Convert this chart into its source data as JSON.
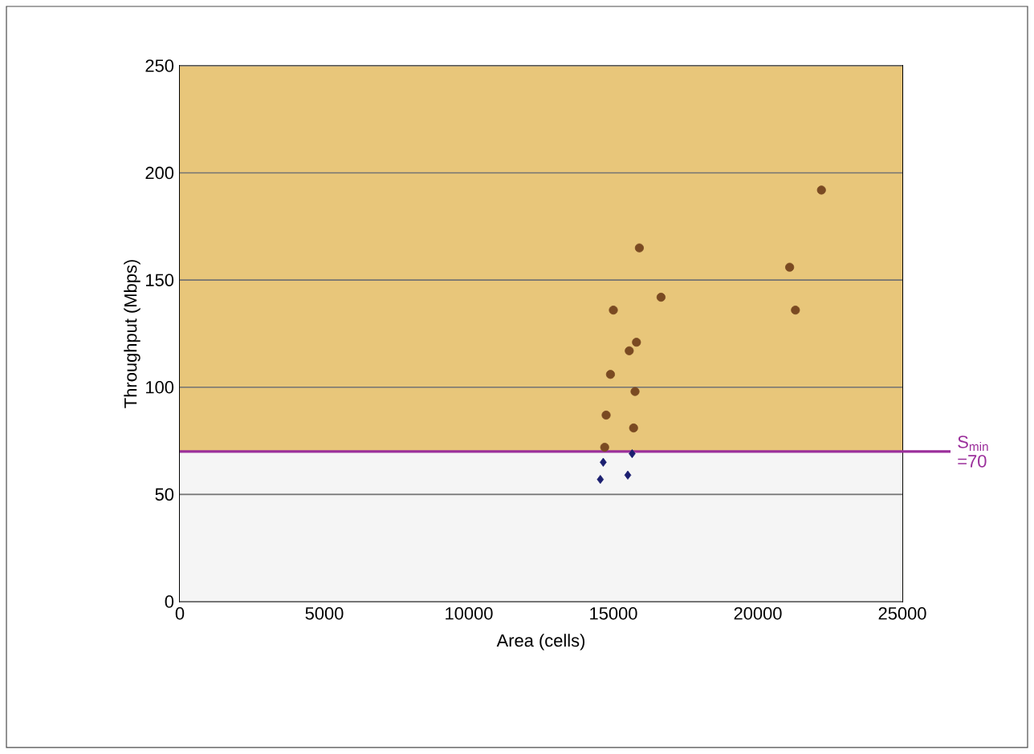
{
  "chart_data": {
    "type": "scatter",
    "xlabel": "Area (cells)",
    "ylabel": "Throughput (Mbps)",
    "xlim": [
      0,
      25000
    ],
    "ylim": [
      0,
      250
    ],
    "xticks": [
      0,
      5000,
      10000,
      15000,
      20000,
      25000
    ],
    "yticks": [
      0,
      50,
      100,
      150,
      200,
      250
    ],
    "grid": "y",
    "series": [
      {
        "color": "#7a4a22",
        "marker": "circle",
        "x": [
          15000,
          16650,
          15900,
          15800,
          15550,
          14900,
          15750,
          14750,
          15700,
          14700,
          22200,
          21100,
          21300
        ],
        "values": [
          136,
          142,
          165,
          121,
          117,
          106,
          98,
          87,
          81,
          72,
          192,
          156,
          136
        ]
      },
      {
        "color": "#1c1f70",
        "marker": "diamond",
        "x": [
          15650,
          14650,
          15500,
          14550
        ],
        "values": [
          69,
          65,
          59,
          57
        ]
      }
    ],
    "bands": [
      {
        "axis": "y",
        "from": 70,
        "to": 250,
        "color": "#e8c67a"
      },
      {
        "axis": "y",
        "from": 0,
        "to": 70,
        "color": "#f5f5f5"
      }
    ],
    "ref_lines": [
      {
        "axis": "y",
        "value": 70,
        "label": "S$_{min}$ =70",
        "color": "#9b2f9b"
      }
    ]
  }
}
